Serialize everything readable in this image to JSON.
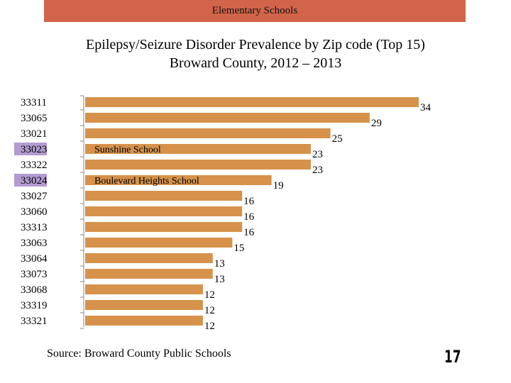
{
  "header": {
    "banner": "Elementary Schools"
  },
  "title_line1": "Epilepsy/Seizure Disorder Prevalence by Zip code (Top 15)",
  "title_line2": "Broward County, 2012 – 2013",
  "source": "Source: Broward County Public Schools",
  "page_number": "17",
  "colors": {
    "bar": "#d6924a",
    "highlight": "#b39ad0",
    "banner": "#d2644a"
  },
  "chart_data": {
    "type": "bar",
    "orientation": "horizontal",
    "categories": [
      "33311",
      "33065",
      "33021",
      "33023",
      "33322",
      "33024",
      "33027",
      "33060",
      "33313",
      "33063",
      "33064",
      "33073",
      "33068",
      "33319",
      "33321"
    ],
    "values": [
      34,
      29,
      25,
      23,
      23,
      19,
      16,
      16,
      16,
      15,
      13,
      13,
      12,
      12,
      12
    ],
    "highlighted_categories": [
      "33023",
      "33024"
    ],
    "annotations": [
      {
        "category": "33023",
        "text": "Sunshine School"
      },
      {
        "category": "33024",
        "text": "Boulevard Heights School"
      }
    ],
    "xlim": [
      0,
      34
    ],
    "grid": false,
    "data_labels": true
  }
}
